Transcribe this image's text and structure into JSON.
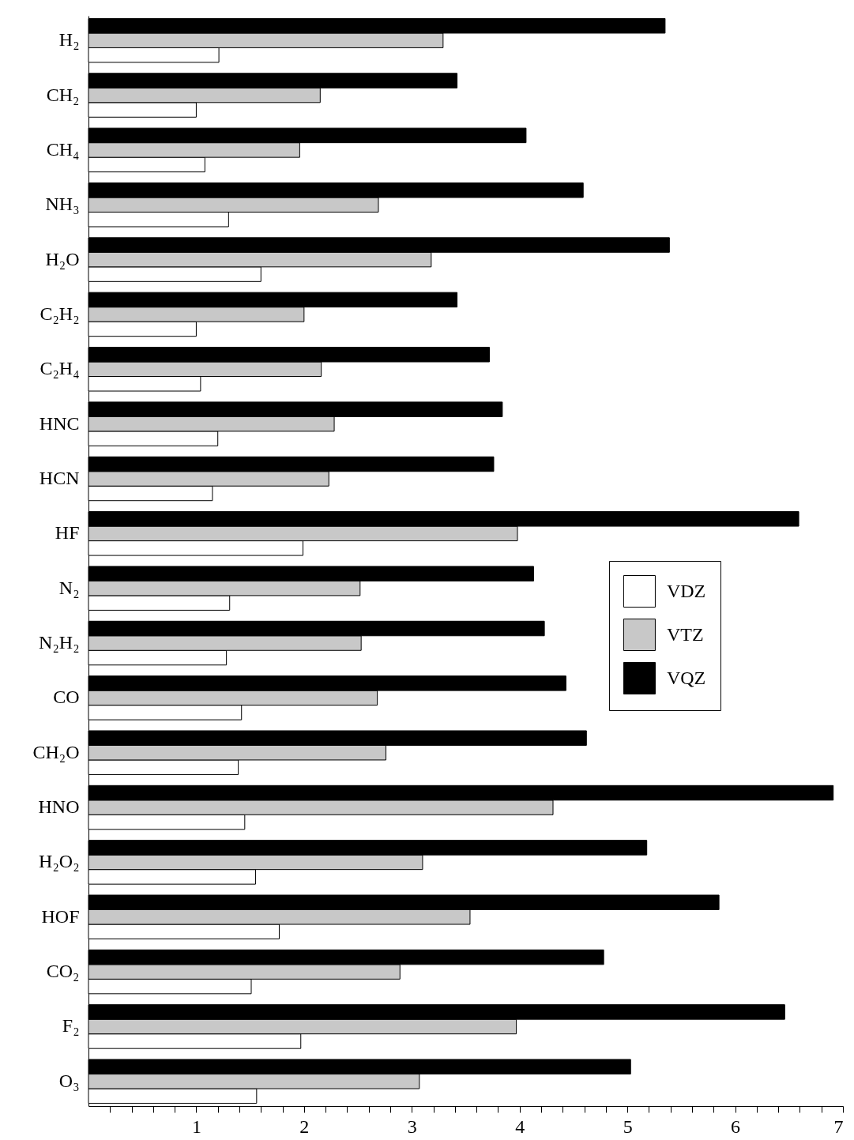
{
  "chart_data": {
    "type": "bar",
    "orientation": "horizontal",
    "categories": [
      "H₂",
      "CH₂",
      "CH₄",
      "NH₃",
      "H₂O",
      "C₂H₂",
      "C₂H₄",
      "HNC",
      "HCN",
      "HF",
      "N₂",
      "N₂H₂",
      "CO",
      "CH₂O",
      "HNO",
      "H₂O₂",
      "HOF",
      "CO₂",
      "F₂",
      "O₃"
    ],
    "series": [
      {
        "name": "VDZ",
        "color": "#ffffff",
        "values": [
          1.21,
          1.0,
          1.08,
          1.3,
          1.6,
          1.0,
          1.04,
          1.2,
          1.15,
          1.99,
          1.31,
          1.28,
          1.42,
          1.39,
          1.45,
          1.55,
          1.77,
          1.51,
          1.97,
          1.56
        ]
      },
      {
        "name": "VTZ",
        "color": "#c8c8c8",
        "values": [
          3.29,
          2.15,
          1.96,
          2.69,
          3.18,
          2.0,
          2.16,
          2.28,
          2.23,
          3.98,
          2.52,
          2.53,
          2.68,
          2.76,
          4.31,
          3.1,
          3.54,
          2.89,
          3.97,
          3.07
        ]
      },
      {
        "name": "VQZ",
        "color": "#000000",
        "values": [
          5.35,
          3.42,
          4.06,
          4.59,
          5.39,
          3.42,
          3.72,
          3.84,
          3.76,
          6.59,
          4.13,
          4.23,
          4.43,
          4.62,
          6.91,
          5.18,
          5.85,
          4.78,
          6.46,
          5.03
        ]
      }
    ],
    "xlim": [
      0,
      7
    ],
    "xticks": [
      {
        "value": 0.2,
        "label": null
      },
      {
        "value": 0.4,
        "label": null
      },
      {
        "value": 0.6,
        "label": null
      },
      {
        "value": 0.8,
        "label": null
      },
      1,
      {
        "value": 1.2,
        "label": null
      },
      {
        "value": 1.4,
        "label": null
      },
      {
        "value": 1.6,
        "label": null
      },
      {
        "value": 1.8,
        "label": null
      },
      2,
      {
        "value": 2.2,
        "label": null
      },
      {
        "value": 2.4,
        "label": null
      },
      {
        "value": 2.6,
        "label": null
      },
      {
        "value": 2.8,
        "label": null
      },
      3,
      {
        "value": 3.2,
        "label": null
      },
      {
        "value": 3.4,
        "label": null
      },
      {
        "value": 3.6,
        "label": null
      },
      {
        "value": 3.8,
        "label": null
      },
      4,
      {
        "value": 4.2,
        "label": null
      },
      {
        "value": 4.4,
        "label": null
      },
      {
        "value": 4.6,
        "label": null
      },
      {
        "value": 4.8,
        "label": null
      },
      5,
      {
        "value": 5.2,
        "label": null
      },
      {
        "value": 5.4,
        "label": null
      },
      {
        "value": 5.6,
        "label": null
      },
      {
        "value": 5.8,
        "label": null
      },
      6,
      {
        "value": 6.2,
        "label": null
      },
      {
        "value": 6.4,
        "label": null
      },
      {
        "value": 6.6,
        "label": null
      },
      {
        "value": 6.8,
        "label": null
      },
      7
    ],
    "grid": false,
    "legend": "right"
  }
}
